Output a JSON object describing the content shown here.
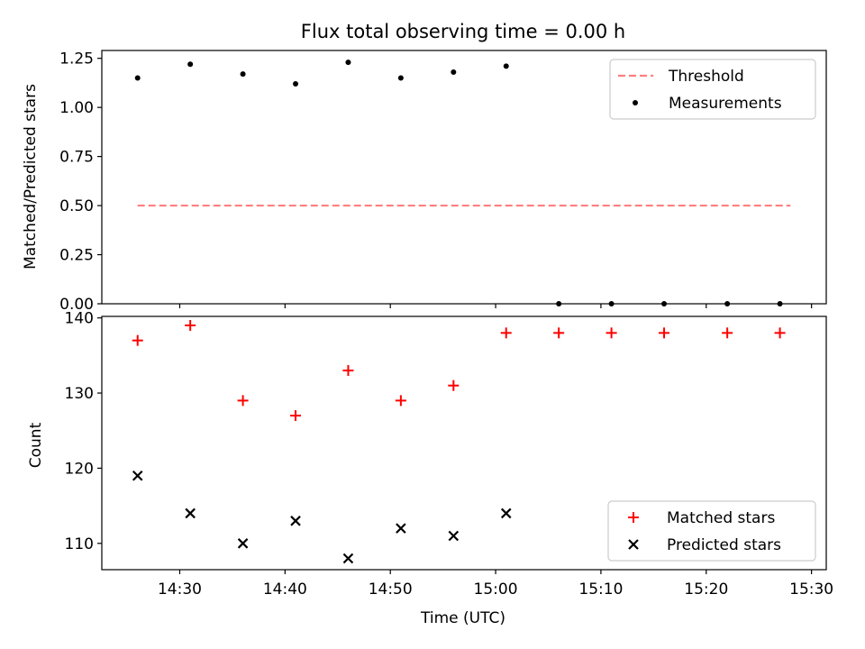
{
  "chart_data": [
    {
      "type": "scatter",
      "title": "Flux total observing time = 0.00 h",
      "ylabel": "Matched/Predicted stars",
      "xlabel": "",
      "ylim": [
        0,
        1.29
      ],
      "yticks": [
        "0.00",
        "0.25",
        "0.50",
        "0.75",
        "1.00",
        "1.25"
      ],
      "grid": false,
      "legend_position": "upper right",
      "series": [
        {
          "name": "Threshold",
          "kind": "line",
          "style": "dashed",
          "color": "#ff7f7f",
          "x": [
            "14:26",
            "15:28"
          ],
          "y": [
            0.5,
            0.5
          ]
        },
        {
          "name": "Measurements",
          "kind": "scatter",
          "marker": "dot",
          "color": "#000000",
          "x": [
            "14:26",
            "14:31",
            "14:36",
            "14:41",
            "14:46",
            "14:51",
            "14:56",
            "15:01",
            "15:06",
            "15:11",
            "15:16",
            "15:22",
            "15:27"
          ],
          "y": [
            1.15,
            1.22,
            1.17,
            1.12,
            1.23,
            1.15,
            1.18,
            1.21,
            0.0,
            0.0,
            0.0,
            0.0,
            0.0
          ]
        }
      ]
    },
    {
      "type": "scatter",
      "title": "",
      "xlabel": "Time (UTC)",
      "ylabel": "Count",
      "ylim": [
        106.5,
        140.2
      ],
      "yticks": [
        "110",
        "120",
        "130",
        "140"
      ],
      "xticks": [
        "14:30",
        "14:40",
        "14:50",
        "15:00",
        "15:10",
        "15:20",
        "15:30"
      ],
      "grid": false,
      "legend_position": "lower right",
      "series": [
        {
          "name": "Matched stars",
          "marker": "plus",
          "color": "#ff0000",
          "x": [
            "14:26",
            "14:31",
            "14:36",
            "14:41",
            "14:46",
            "14:51",
            "14:56",
            "15:01",
            "15:06",
            "15:11",
            "15:16",
            "15:22",
            "15:27"
          ],
          "y": [
            137,
            139,
            129,
            127,
            133,
            129,
            131,
            138,
            138,
            138,
            138,
            138,
            138
          ]
        },
        {
          "name": "Predicted stars",
          "marker": "x",
          "color": "#000000",
          "x": [
            "14:26",
            "14:31",
            "14:36",
            "14:41",
            "14:46",
            "14:51",
            "14:56",
            "15:01"
          ],
          "y": [
            119,
            114,
            110,
            113,
            108,
            112,
            111,
            114
          ]
        }
      ]
    }
  ]
}
